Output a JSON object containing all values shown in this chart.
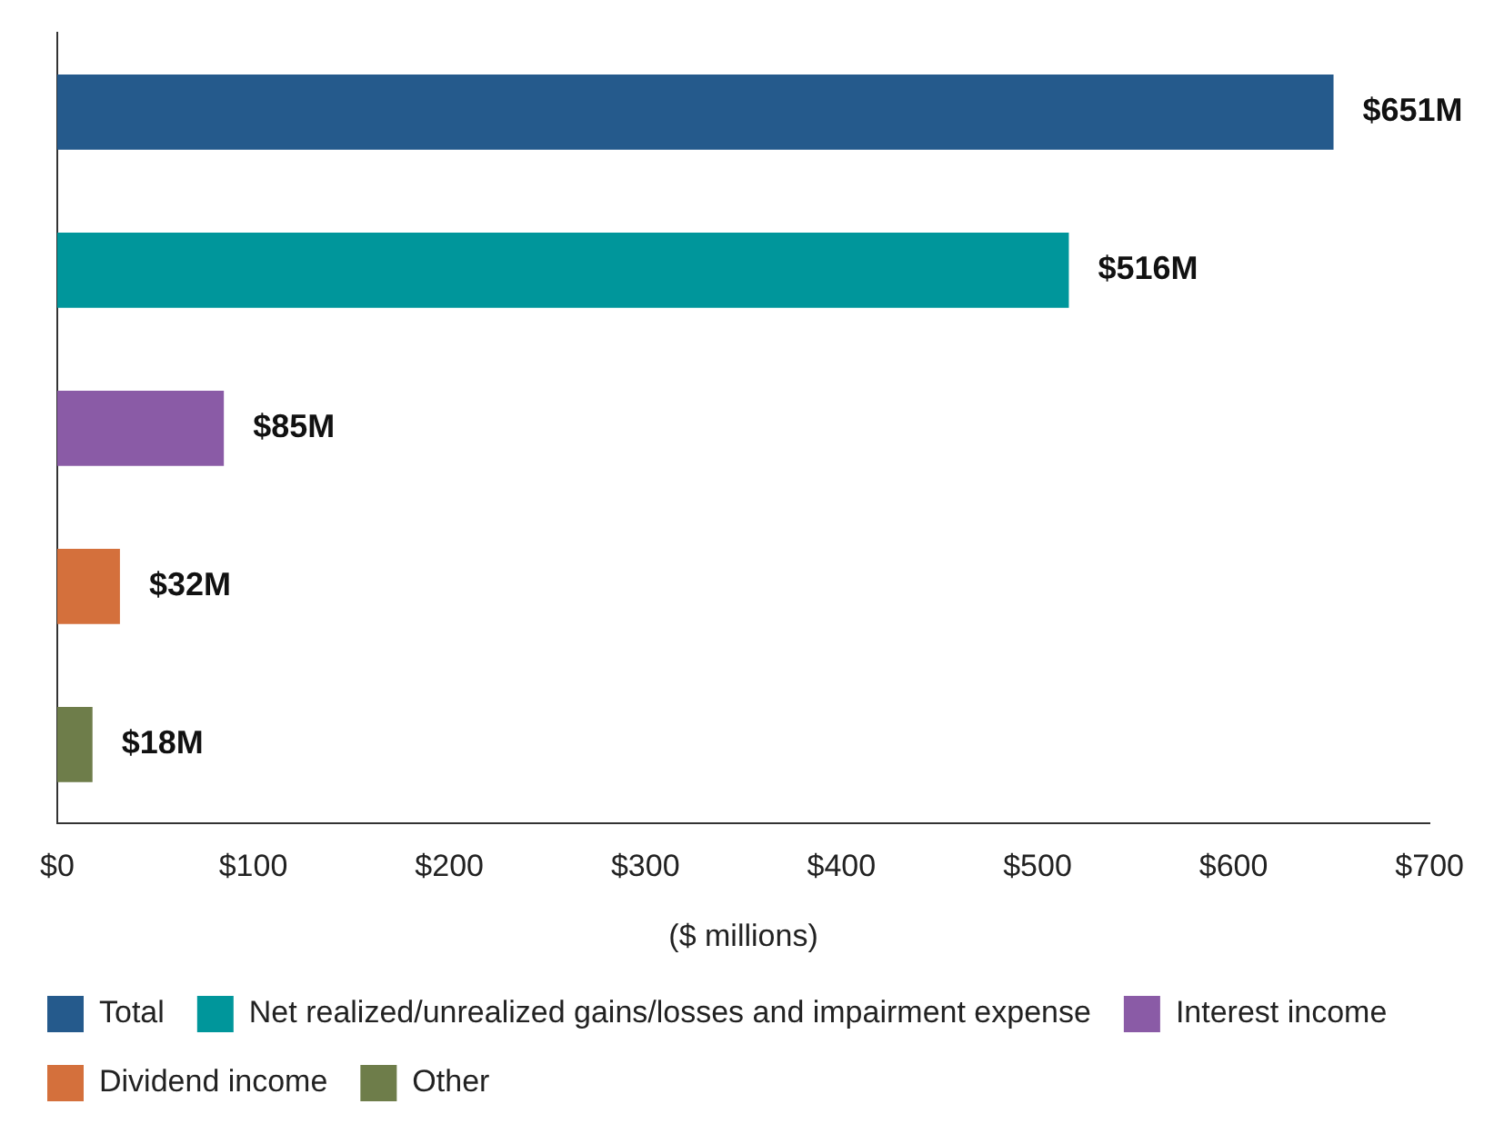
{
  "chart_data": {
    "type": "bar",
    "orientation": "horizontal",
    "categories": [
      null,
      null,
      null,
      null,
      null
    ],
    "series": [
      {
        "name": "Total",
        "color": "#255a8c",
        "values": [
          651,
          null,
          null,
          null,
          null
        ],
        "value_labels": [
          "$651M",
          null,
          null,
          null,
          null
        ]
      },
      {
        "name": "Net realized/unrealized gains/losses and impairment expense",
        "color": "#00969b",
        "values": [
          null,
          516,
          null,
          null,
          null
        ],
        "value_labels": [
          null,
          "$516M",
          null,
          null,
          null
        ]
      },
      {
        "name": "Interest income",
        "color": "#8a5ba6",
        "values": [
          null,
          null,
          85,
          null,
          null
        ],
        "value_labels": [
          null,
          null,
          "$85M",
          null,
          null
        ]
      },
      {
        "name": "Dividend income",
        "color": "#d4703c",
        "values": [
          null,
          null,
          null,
          32,
          null
        ],
        "value_labels": [
          null,
          null,
          null,
          "$32M",
          null
        ]
      },
      {
        "name": "Other",
        "color": "#6e7d4a",
        "values": [
          null,
          null,
          null,
          null,
          18
        ],
        "value_labels": [
          null,
          null,
          null,
          null,
          "$18M"
        ]
      }
    ],
    "xlim": [
      0,
      700
    ],
    "xticks": [
      {
        "value": 0,
        "label": "$0"
      },
      {
        "value": 100,
        "label": "$100"
      },
      {
        "value": 200,
        "label": "$200"
      },
      {
        "value": 300,
        "label": "$300"
      },
      {
        "value": 400,
        "label": "$400"
      },
      {
        "value": 500,
        "label": "$500"
      },
      {
        "value": 600,
        "label": "$600"
      },
      {
        "value": 700,
        "label": "$700"
      }
    ],
    "xlabel": "($ millions)",
    "grid": false,
    "legend": "bottom"
  }
}
